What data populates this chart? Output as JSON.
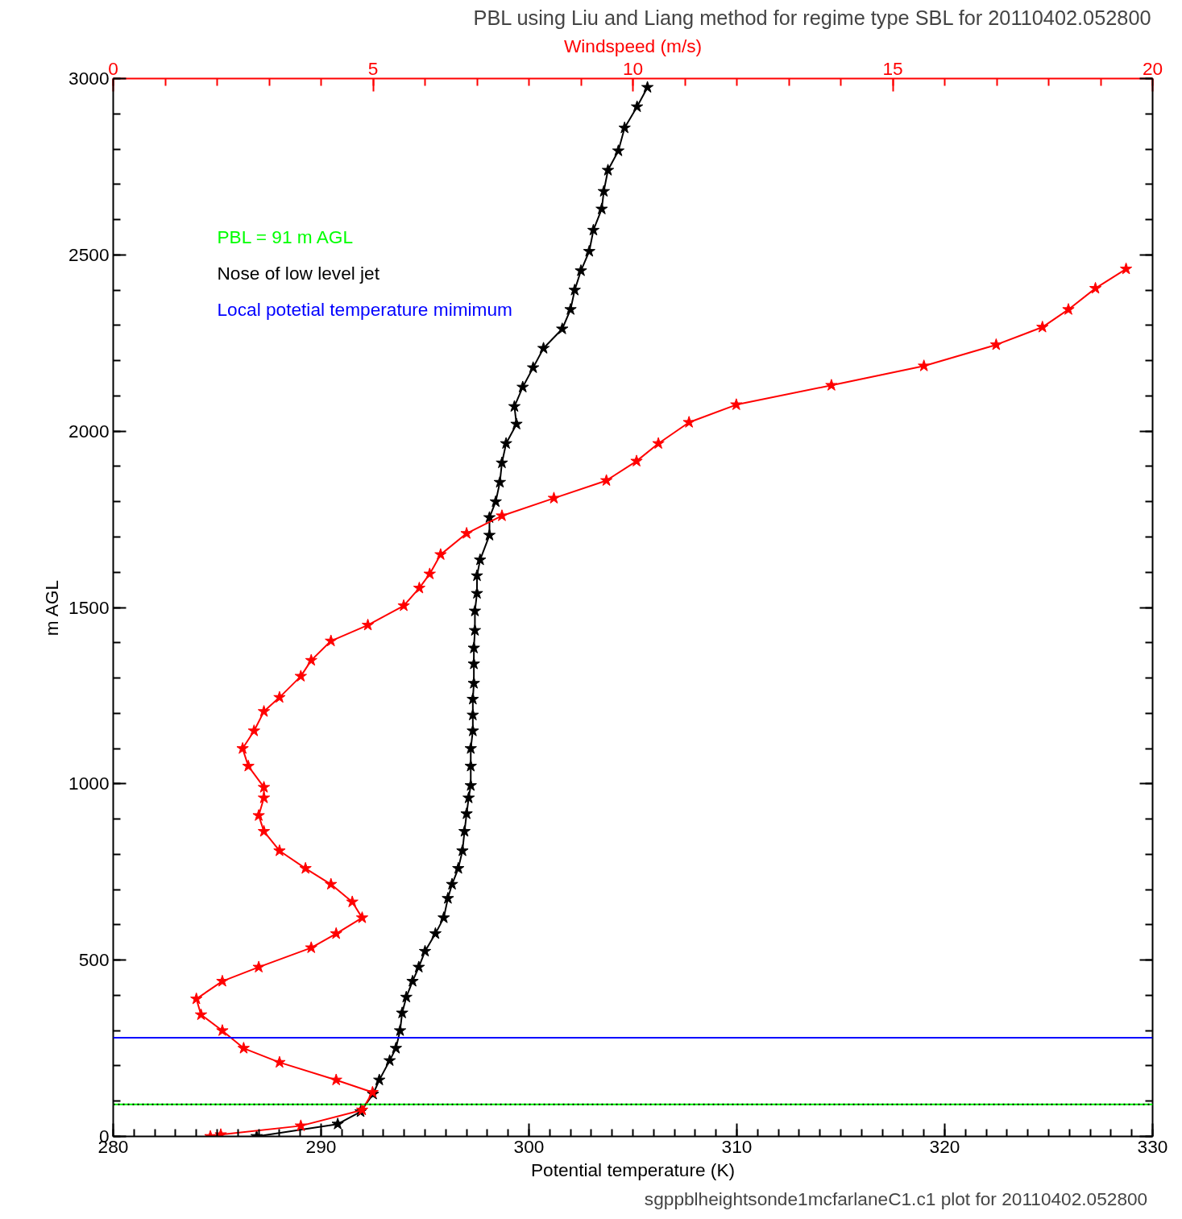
{
  "chart_data": {
    "type": "line",
    "title": "PBL using Liu and Liang method for regime type SBL for 20110402.052800",
    "xlabel": "Potential temperature (K)",
    "x2label": "Windspeed (m/s)",
    "ylabel": "m AGL",
    "xlim": [
      280,
      330
    ],
    "xticks": [
      280,
      290,
      300,
      310,
      320,
      330
    ],
    "x2lim": [
      0,
      20
    ],
    "x2ticks": [
      0,
      5,
      10,
      15,
      20
    ],
    "ylim": [
      0,
      3000
    ],
    "yticks": [
      0,
      500,
      1000,
      1500,
      2000,
      2500,
      3000
    ],
    "grid": false,
    "marker": "star",
    "line_style": "solid",
    "series": [
      {
        "color": "#ff0000",
        "axis": "x2",
        "x": [
          1.87,
          2.07,
          3.61,
          4.79,
          4.99,
          4.29,
          3.2,
          2.51,
          2.1,
          1.69,
          1.6,
          2.1,
          2.8,
          3.81,
          4.29,
          4.79,
          4.6,
          4.19,
          3.7,
          3.2,
          2.9,
          2.8,
          2.9,
          2.9,
          2.6,
          2.49,
          2.71,
          2.9,
          3.2,
          3.61,
          3.81,
          4.19,
          4.9,
          5.59,
          5.89,
          6.09,
          6.3,
          6.8,
          7.48,
          8.48,
          9.49,
          10.07,
          10.49,
          11.08,
          11.99,
          13.82,
          15.6,
          16.99,
          17.88,
          18.38,
          18.9,
          19.49
        ],
        "values": [
          0,
          5,
          30,
          75,
          125,
          160,
          210,
          250,
          300,
          345,
          390,
          440,
          480,
          535,
          575,
          620,
          665,
          715,
          760,
          810,
          865,
          910,
          960,
          990,
          1050,
          1100,
          1150,
          1205,
          1245,
          1305,
          1350,
          1405,
          1450,
          1505,
          1555,
          1595,
          1650,
          1710,
          1760,
          1810,
          1860,
          1915,
          1965,
          2025,
          2075,
          2130,
          2185,
          2245,
          2295,
          2345,
          2405,
          2460
        ]
      },
      {
        "color": "#000000",
        "x": [
          286.9,
          290.8,
          291.9,
          292.5,
          292.8,
          293.3,
          293.6,
          293.8,
          293.9,
          294.1,
          294.4,
          294.7,
          295.0,
          295.5,
          295.9,
          296.1,
          296.3,
          296.6,
          296.8,
          296.9,
          297.0,
          297.1,
          297.2,
          297.2,
          297.2,
          297.3,
          297.3,
          297.3,
          297.35,
          297.35,
          297.35,
          297.4,
          297.4,
          297.5,
          297.5,
          297.65,
          298.1,
          298.1,
          298.4,
          298.6,
          298.7,
          298.9,
          299.4,
          299.3,
          299.7,
          300.2,
          300.7,
          301.6,
          302.0,
          302.2,
          302.5,
          302.9,
          303.1,
          303.5,
          303.6,
          303.8,
          304.3,
          304.6,
          305.2,
          305.7
        ],
        "values": [
          0,
          35,
          70,
          120,
          160,
          215,
          250,
          300,
          350,
          395,
          440,
          480,
          525,
          575,
          620,
          675,
          715,
          760,
          810,
          865,
          915,
          960,
          995,
          1050,
          1100,
          1150,
          1195,
          1240,
          1285,
          1340,
          1385,
          1435,
          1490,
          1540,
          1590,
          1635,
          1705,
          1755,
          1800,
          1855,
          1910,
          1965,
          2020,
          2070,
          2125,
          2180,
          2235,
          2290,
          2345,
          2400,
          2455,
          2510,
          2570,
          2630,
          2680,
          2740,
          2795,
          2860,
          2920,
          2975
        ]
      }
    ],
    "ref_lines": [
      {
        "axis": "y",
        "value": 91,
        "label": "PBL =     91 m AGL",
        "color": "#00ff00",
        "line_style": "solid"
      },
      {
        "axis": "y",
        "value": 91,
        "label": "Nose of low level jet",
        "color": "#000000",
        "line_style": "dotted"
      },
      {
        "axis": "y",
        "value": 280,
        "label": "Local potetial temperature mimimum",
        "color": "#0000ff",
        "line_style": "solid"
      }
    ],
    "annotations": [
      "sgppblheightsonde1mcfarlaneC1.c1 plot  for 20110402.052800"
    ]
  }
}
